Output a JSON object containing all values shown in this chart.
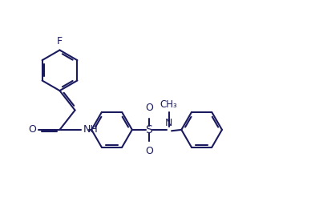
{
  "background": "#ffffff",
  "line_color": "#1a1a5e",
  "text_color": "#1a1a5e",
  "bond_lw": 1.5,
  "inner_off": 0.07,
  "figsize": [
    3.88,
    2.67
  ],
  "dpi": 100,
  "xlim": [
    0,
    11
  ],
  "ylim": [
    0,
    7.5
  ]
}
